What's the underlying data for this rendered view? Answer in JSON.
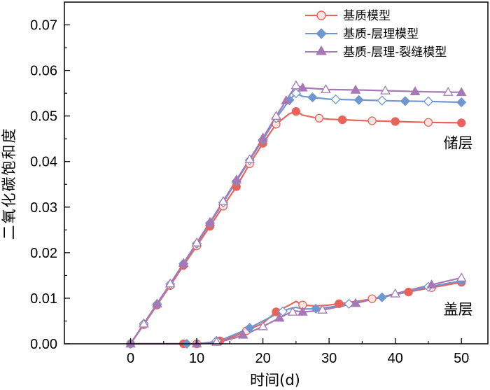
{
  "chart_data": {
    "type": "line",
    "title": "",
    "xlabel": "时间(d)",
    "ylabel": "二氧化碳饱和度",
    "xlim": [
      -10,
      54
    ],
    "ylim": [
      0,
      0.075
    ],
    "x_ticks": [
      0,
      10,
      20,
      30,
      40,
      50
    ],
    "y_ticks": [
      0.0,
      0.01,
      0.02,
      0.03,
      0.04,
      0.05,
      0.06,
      0.07
    ],
    "y_tick_labels": [
      "0.00",
      "0.01",
      "0.02",
      "0.03",
      "0.04",
      "0.05",
      "0.06",
      "0.07"
    ],
    "legend_position": "top-right",
    "annotations": [
      {
        "text": "储层",
        "x": 49.5,
        "y": 0.044
      },
      {
        "text": "盖层",
        "x": 49.5,
        "y": 0.0075
      }
    ],
    "series": [
      {
        "name": "基质模型",
        "layer": "储层",
        "color": "#e8645b",
        "marker": "circle",
        "x": [
          0,
          2,
          4,
          6,
          8,
          10,
          12,
          14,
          16,
          18,
          20,
          22,
          24,
          25,
          26,
          28,
          30,
          35,
          40,
          45,
          50
        ],
        "y": [
          0,
          0.0042,
          0.0085,
          0.0128,
          0.0172,
          0.0215,
          0.0258,
          0.0302,
          0.0345,
          0.0395,
          0.044,
          0.0482,
          0.0505,
          0.051,
          0.0502,
          0.0496,
          0.0493,
          0.049,
          0.0488,
          0.0486,
          0.0485
        ],
        "markers_x": [
          0,
          2,
          4,
          6,
          8,
          10,
          12,
          14,
          16,
          18,
          20,
          22,
          25,
          28.5,
          32,
          36.5,
          40,
          45,
          50
        ]
      },
      {
        "name": "基质-层理模型",
        "layer": "储层",
        "color": "#6f97cf",
        "marker": "diamond",
        "x": [
          0,
          2,
          4,
          6,
          8,
          10,
          12,
          14,
          16,
          18,
          20,
          22,
          24,
          25,
          26,
          28,
          30,
          35,
          40,
          45,
          50
        ],
        "y": [
          0,
          0.0044,
          0.0087,
          0.0131,
          0.0176,
          0.022,
          0.0265,
          0.031,
          0.0357,
          0.0403,
          0.0448,
          0.0495,
          0.0535,
          0.055,
          0.0543,
          0.054,
          0.0537,
          0.0535,
          0.0533,
          0.0532,
          0.053
        ],
        "markers_x": [
          0,
          2,
          4,
          6,
          8,
          10,
          12,
          14,
          16,
          18,
          20,
          22,
          24,
          25,
          27.5,
          31,
          34.5,
          38,
          41.5,
          45,
          50
        ]
      },
      {
        "name": "基质-层理-裂缝模型",
        "layer": "储层",
        "color": "#a678b5",
        "marker": "triangle",
        "x": [
          0,
          2,
          4,
          6,
          8,
          10,
          12,
          14,
          16,
          18,
          20,
          22,
          24,
          25,
          26,
          28,
          30,
          35,
          40,
          45,
          50
        ],
        "y": [
          0,
          0.0044,
          0.0088,
          0.0132,
          0.0177,
          0.0222,
          0.0267,
          0.0313,
          0.036,
          0.0405,
          0.0452,
          0.05,
          0.0545,
          0.0567,
          0.0562,
          0.056,
          0.0558,
          0.0557,
          0.0555,
          0.0553,
          0.0552
        ],
        "markers_x": [
          0,
          2,
          4,
          6,
          8,
          10,
          12,
          14,
          16,
          18,
          20,
          22,
          23.5,
          25,
          26,
          29.5,
          34,
          38.5,
          43,
          48,
          50
        ]
      },
      {
        "name": "基质模型",
        "layer": "盖层",
        "color": "#e8645b",
        "marker": "circle",
        "x": [
          0,
          8,
          10,
          12,
          14,
          16,
          18,
          20,
          22,
          24,
          25,
          26,
          28,
          30,
          35,
          40,
          45,
          50
        ],
        "y": [
          0,
          0,
          0,
          0.0002,
          0.0008,
          0.0018,
          0.0032,
          0.0045,
          0.007,
          0.0085,
          0.0093,
          0.0085,
          0.0083,
          0.0085,
          0.0095,
          0.0108,
          0.0122,
          0.0135
        ],
        "markers_x": [
          8,
          10,
          13.5,
          17.5,
          22,
          26,
          31.5,
          36.5,
          42,
          45.5,
          50
        ]
      },
      {
        "name": "基质-层理模型",
        "layer": "盖层",
        "color": "#6f97cf",
        "marker": "diamond",
        "x": [
          0,
          8,
          10,
          12,
          14,
          16,
          18,
          20,
          22,
          24,
          25,
          26,
          28,
          30,
          35,
          40,
          45,
          50
        ],
        "y": [
          0,
          0,
          0,
          0.0003,
          0.001,
          0.0022,
          0.0035,
          0.005,
          0.0065,
          0.0077,
          0.008,
          0.0076,
          0.0077,
          0.008,
          0.0093,
          0.0108,
          0.0125,
          0.0138
        ],
        "markers_x": [
          8.5,
          13,
          18,
          23,
          28,
          33,
          38,
          45,
          50
        ]
      },
      {
        "name": "基质-层理-裂缝模型",
        "layer": "盖层",
        "color": "#a678b5",
        "marker": "triangle",
        "x": [
          0,
          8,
          10,
          12,
          14,
          16,
          18,
          20,
          22,
          24,
          25,
          26,
          28,
          30,
          35,
          40,
          45,
          50
        ],
        "y": [
          0,
          0,
          0,
          0.0002,
          0.0006,
          0.0014,
          0.0025,
          0.0038,
          0.0053,
          0.0068,
          0.0072,
          0.007,
          0.0072,
          0.0077,
          0.0092,
          0.011,
          0.0128,
          0.0145
        ],
        "markers_x": [
          10,
          13,
          17,
          20,
          22.5,
          24.5,
          26,
          29,
          34,
          40,
          45.5,
          50
        ]
      }
    ]
  }
}
